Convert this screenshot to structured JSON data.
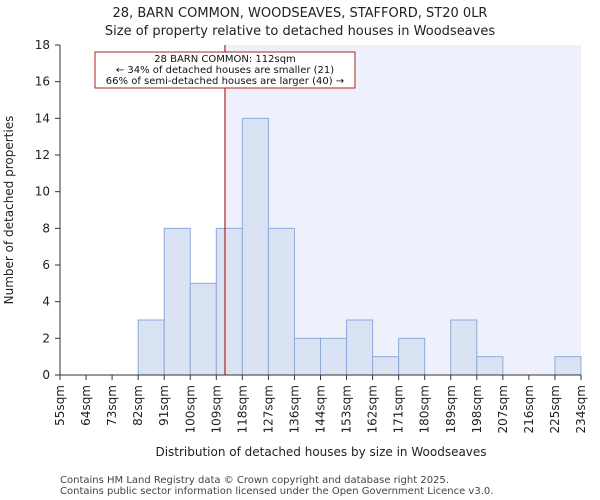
{
  "chart_data": {
    "type": "bar",
    "title": "28, BARN COMMON, WOODSEAVES, STAFFORD, ST20 0LR",
    "subtitle": "Size of property relative to detached houses in Woodseaves",
    "xlabel": "Distribution of detached houses by size in Woodseaves",
    "ylabel": "Number of detached properties",
    "ylim": [
      0,
      18
    ],
    "yticks": [
      0,
      2,
      4,
      6,
      8,
      10,
      12,
      14,
      16,
      18
    ],
    "bin_edges": [
      55,
      64,
      73,
      82,
      91,
      100,
      109,
      118,
      127,
      136,
      144,
      153,
      162,
      171,
      180,
      189,
      198,
      207,
      216,
      225,
      234
    ],
    "tick_labels": [
      "55sqm",
      "64sqm",
      "73sqm",
      "82sqm",
      "91sqm",
      "100sqm",
      "109sqm",
      "118sqm",
      "127sqm",
      "136sqm",
      "144sqm",
      "153sqm",
      "162sqm",
      "171sqm",
      "180sqm",
      "189sqm",
      "198sqm",
      "207sqm",
      "216sqm",
      "225sqm",
      "234sqm"
    ],
    "values": [
      0,
      0,
      0,
      3,
      8,
      5,
      8,
      14,
      8,
      2,
      2,
      3,
      1,
      2,
      0,
      3,
      1,
      0,
      0,
      1
    ],
    "property_size": 112,
    "annotation": {
      "line1": "28 BARN COMMON: 112sqm",
      "line2": "← 34% of detached houses are smaller (21)",
      "line3": "66% of semi-detached houses are larger (40) →"
    },
    "colors": {
      "bar_fill": "#dae3f3",
      "bar_edge": "#8ea9db",
      "highlight_bg": "#eef1fb",
      "marker": "#b22222",
      "axis": "#333333"
    }
  },
  "footer": {
    "line1": "Contains HM Land Registry data © Crown copyright and database right 2025.",
    "line2": "Contains public sector information licensed under the Open Government Licence v3.0."
  }
}
